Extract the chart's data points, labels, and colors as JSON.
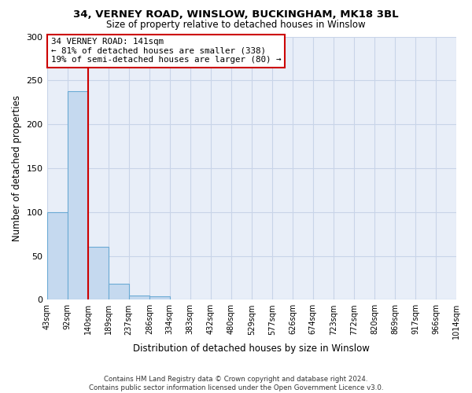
{
  "title1": "34, VERNEY ROAD, WINSLOW, BUCKINGHAM, MK18 3BL",
  "title2": "Size of property relative to detached houses in Winslow",
  "xlabel": "Distribution of detached houses by size in Winslow",
  "ylabel": "Number of detached properties",
  "bar_color": "#c5d9ef",
  "bar_edge_color": "#6aaad4",
  "bin_edges": [
    43,
    92,
    140,
    189,
    237,
    286,
    334,
    383,
    432,
    480,
    529,
    577,
    626,
    674,
    723,
    772,
    820,
    869,
    917,
    966,
    1014
  ],
  "bar_heights": [
    100,
    238,
    60,
    18,
    5,
    4,
    0,
    0,
    0,
    0,
    0,
    0,
    0,
    0,
    0,
    0,
    0,
    0,
    0,
    0
  ],
  "property_size": 141,
  "vline_color": "#cc0000",
  "annotation_line1": "34 VERNEY ROAD: 141sqm",
  "annotation_line2": "← 81% of detached houses are smaller (338)",
  "annotation_line3": "19% of semi-detached houses are larger (80) →",
  "annotation_box_color": "#ffffff",
  "annotation_edge_color": "#cc0000",
  "ylim": [
    0,
    300
  ],
  "yticks": [
    0,
    50,
    100,
    150,
    200,
    250,
    300
  ],
  "grid_color": "#c8d4e8",
  "background_color": "#e8eef8",
  "footer": "Contains HM Land Registry data © Crown copyright and database right 2024.\nContains public sector information licensed under the Open Government Licence v3.0."
}
